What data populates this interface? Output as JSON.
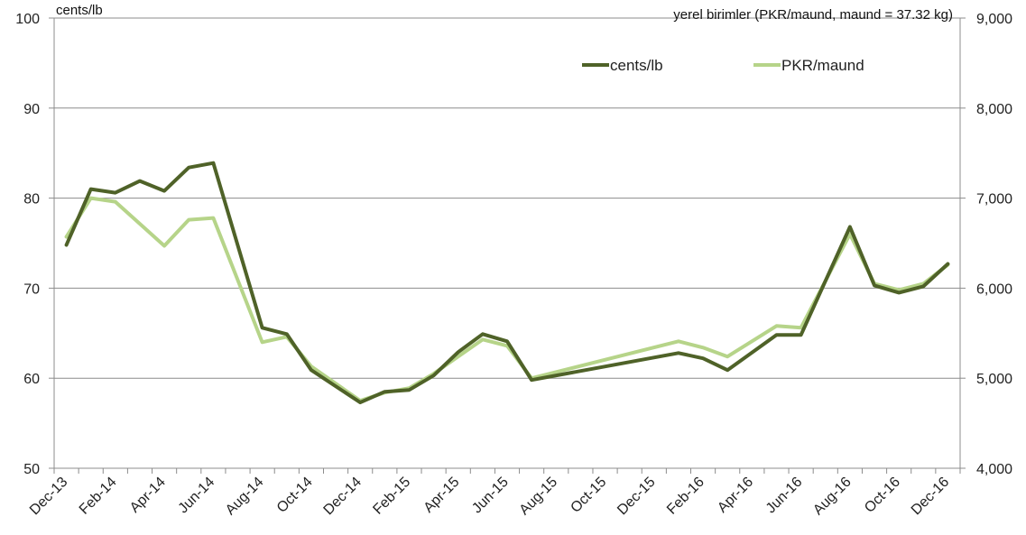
{
  "chart_data": {
    "type": "line",
    "left_unit_label": "cents/lb",
    "right_unit_label": "yerel birimler (PKR/maund, maund = 37.32 kg)",
    "y_left": {
      "min": 50,
      "max": 100,
      "ticks": [
        "50",
        "60",
        "70",
        "80",
        "90",
        "100"
      ]
    },
    "y_right": {
      "min": 4000,
      "max": 9000,
      "ticks": [
        "4,000",
        "5,000",
        "6,000",
        "7,000",
        "8,000",
        "9,000"
      ]
    },
    "grid": true,
    "legend_position": "top-right",
    "x_tick_labels": [
      "Dec-13",
      "Feb-14",
      "Apr-14",
      "Jun-14",
      "Aug-14",
      "Oct-14",
      "Dec-14",
      "Feb-15",
      "Apr-15",
      "Jun-15",
      "Aug-15",
      "Oct-15",
      "Dec-15",
      "Feb-16",
      "Apr-16",
      "Jun-16",
      "Aug-16",
      "Oct-16",
      "Dec-16"
    ],
    "series": [
      {
        "name": "cents/lb",
        "axis": "left",
        "color": "#4f6228",
        "points": [
          [
            "Dec-13",
            74.8
          ],
          [
            "Jan-14",
            81.0
          ],
          [
            "Feb-14",
            80.6
          ],
          [
            "Mar-14",
            81.9
          ],
          [
            "Apr-14",
            80.8
          ],
          [
            "May-14",
            83.4
          ],
          [
            "Jun-14",
            83.9
          ],
          [
            "Aug-14",
            65.6
          ],
          [
            "Sep-14",
            64.9
          ],
          [
            "Oct-14",
            60.9
          ],
          [
            "Dec-14",
            57.3
          ],
          [
            "Jan-15",
            58.5
          ],
          [
            "Feb-15",
            58.7
          ],
          [
            "Mar-15",
            60.3
          ],
          [
            "Apr-15",
            62.9
          ],
          [
            "May-15",
            64.9
          ],
          [
            "Jun-15",
            64.1
          ],
          [
            "Jul-15",
            59.8
          ],
          [
            "Jan-16",
            62.8
          ],
          [
            "Feb-16",
            62.2
          ],
          [
            "Mar-16",
            60.9
          ],
          [
            "May-16",
            64.8
          ],
          [
            "Jun-16",
            64.8
          ],
          [
            "Aug-16",
            76.8
          ],
          [
            "Sep-16",
            70.3
          ],
          [
            "Oct-16",
            69.5
          ],
          [
            "Nov-16",
            70.2
          ],
          [
            "Dec-16",
            72.7
          ]
        ]
      },
      {
        "name": "PKR/maund",
        "axis": "right",
        "color": "#b6d489",
        "points": [
          [
            "Dec-13",
            6570
          ],
          [
            "Jan-14",
            7000
          ],
          [
            "Feb-14",
            6960
          ],
          [
            "Apr-14",
            6470
          ],
          [
            "May-14",
            6760
          ],
          [
            "Jun-14",
            6780
          ],
          [
            "Aug-14",
            5400
          ],
          [
            "Sep-14",
            5460
          ],
          [
            "Oct-14",
            5130
          ],
          [
            "Dec-14",
            4750
          ],
          [
            "Jan-15",
            4840
          ],
          [
            "Feb-15",
            4890
          ],
          [
            "Mar-15",
            5050
          ],
          [
            "Apr-15",
            5240
          ],
          [
            "May-15",
            5430
          ],
          [
            "Jun-15",
            5360
          ],
          [
            "Jul-15",
            5000
          ],
          [
            "Jan-16",
            5410
          ],
          [
            "Feb-16",
            5340
          ],
          [
            "Mar-16",
            5240
          ],
          [
            "May-16",
            5580
          ],
          [
            "Jun-16",
            5560
          ],
          [
            "Aug-16",
            6600
          ],
          [
            "Sep-16",
            6050
          ],
          [
            "Oct-16",
            5980
          ],
          [
            "Nov-16",
            6050
          ],
          [
            "Dec-16",
            6260
          ]
        ]
      }
    ]
  }
}
